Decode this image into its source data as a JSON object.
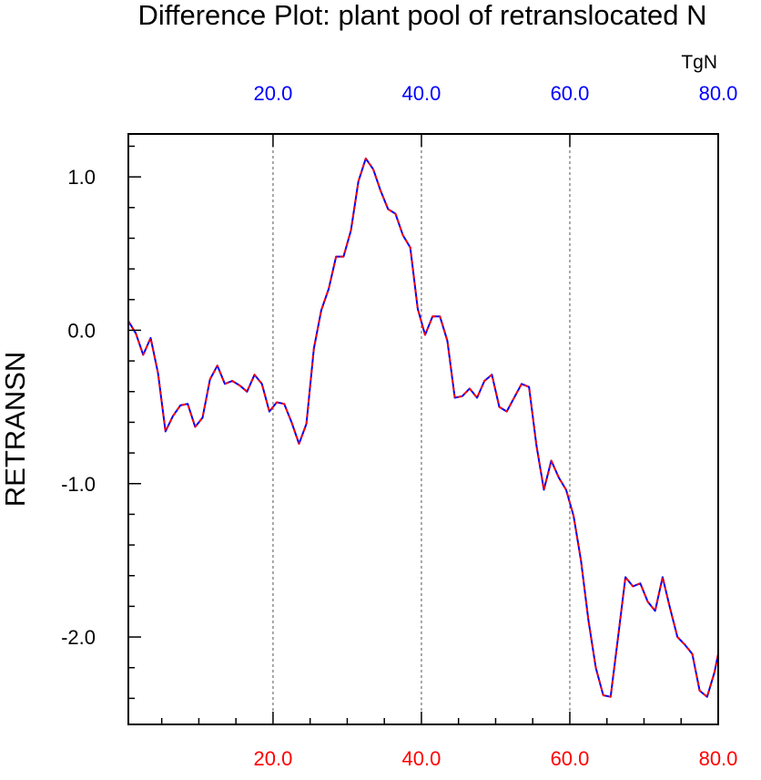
{
  "chart_data": {
    "type": "line",
    "title": "Difference Plot: plant pool of retranslocated N",
    "xlabel": "",
    "ylabel": "RETRANSN",
    "units_label": "TgN",
    "xlim": [
      0.5,
      80.0
    ],
    "ylim": [
      -2.57,
      1.28
    ],
    "grid": "vertical dashed lines at top-axis ticks",
    "bottom_ticks": [
      {
        "value": 20,
        "label": "20.0"
      },
      {
        "value": 40,
        "label": "40.0"
      },
      {
        "value": 60,
        "label": "60.0"
      },
      {
        "value": 80,
        "label": "80.0"
      }
    ],
    "top_ticks": [
      {
        "value": 20,
        "label": "20.0"
      },
      {
        "value": 40,
        "label": "40.0"
      },
      {
        "value": 60,
        "label": "60.0"
      },
      {
        "value": 80,
        "label": "80.0"
      }
    ],
    "y_ticks": [
      {
        "value": 1.0,
        "label": "1.0"
      },
      {
        "value": 0.0,
        "label": "0.0"
      },
      {
        "value": -1.0,
        "label": "-1.0"
      },
      {
        "value": -2.0,
        "label": "-2.0"
      }
    ],
    "colors": {
      "bottom_axis_labels": "#ff0000",
      "top_axis_labels": "#0000ff",
      "series_blue": "#0000ff",
      "series_red": "#ff0000",
      "grid": "#555555",
      "axes": "#000000"
    },
    "x": [
      0.5,
      1.5,
      2.5,
      3.5,
      4.5,
      5.5,
      6.5,
      7.5,
      8.5,
      9.5,
      10.5,
      11.5,
      12.5,
      13.5,
      14.5,
      15.5,
      16.5,
      17.5,
      18.5,
      19.5,
      20.5,
      21.5,
      22.5,
      23.5,
      24.5,
      25.5,
      26.5,
      27.5,
      28.5,
      29.5,
      30.5,
      31.5,
      32.5,
      33.5,
      34.5,
      35.5,
      36.5,
      37.5,
      38.5,
      39.5,
      40.5,
      41.5,
      42.5,
      43.5,
      44.5,
      45.5,
      46.5,
      47.5,
      48.5,
      49.5,
      50.5,
      51.5,
      52.5,
      53.5,
      54.5,
      55.5,
      56.5,
      57.5,
      58.5,
      59.5,
      60.5,
      61.5,
      62.5,
      63.5,
      64.5,
      65.5,
      66.5,
      67.5,
      68.5,
      69.5,
      70.5,
      71.5,
      72.5,
      73.5,
      74.5,
      75.5,
      76.5,
      77.5,
      78.5,
      79.5,
      80.0
    ],
    "series": [
      {
        "values": [
          0.06,
          -0.02,
          -0.16,
          -0.05,
          -0.28,
          -0.66,
          -0.56,
          -0.49,
          -0.48,
          -0.63,
          -0.57,
          -0.32,
          -0.23,
          -0.35,
          -0.33,
          -0.36,
          -0.4,
          -0.29,
          -0.35,
          -0.53,
          -0.47,
          -0.48,
          -0.6,
          -0.74,
          -0.61,
          -0.12,
          0.13,
          0.27,
          0.48,
          0.48,
          0.65,
          0.97,
          1.12,
          1.05,
          0.91,
          0.79,
          0.76,
          0.62,
          0.54,
          0.14,
          -0.03,
          0.09,
          0.09,
          -0.07,
          -0.44,
          -0.43,
          -0.38,
          -0.44,
          -0.33,
          -0.29,
          -0.5,
          -0.53,
          -0.44,
          -0.35,
          -0.37,
          -0.75,
          -1.04,
          -0.85,
          -0.96,
          -1.04,
          -1.21,
          -1.5,
          -1.89,
          -2.2,
          -2.38,
          -2.39,
          -2.0,
          -1.61,
          -1.67,
          -1.65,
          -1.77,
          -1.83,
          -1.61,
          -1.81,
          -2.0,
          -2.05,
          -2.11,
          -2.35,
          -2.39,
          -2.23,
          -2.11
        ]
      }
    ]
  }
}
